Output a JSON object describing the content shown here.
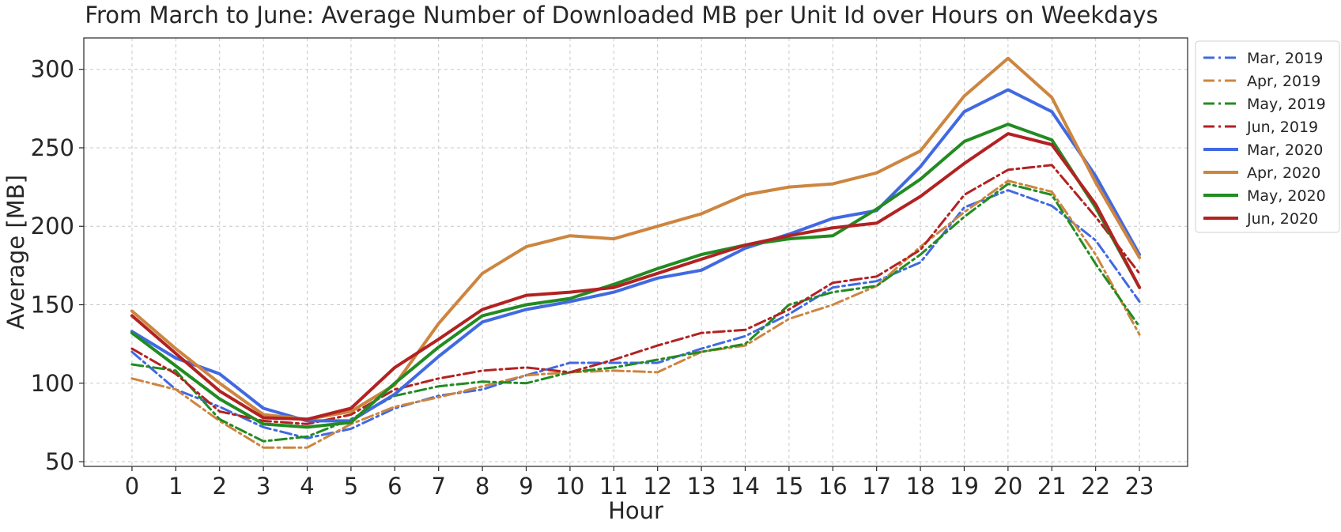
{
  "chart_data": {
    "type": "line",
    "title": "From March to June: Average Number of Downloaded MB per Unit Id over Hours on Weekdays",
    "xlabel": "Hour",
    "ylabel": "Average [MB]",
    "x": [
      0,
      1,
      2,
      3,
      4,
      5,
      6,
      7,
      8,
      9,
      10,
      11,
      12,
      13,
      14,
      15,
      16,
      17,
      18,
      19,
      20,
      21,
      22,
      23
    ],
    "xlim": [
      -1.1,
      24.1
    ],
    "ylim": [
      47,
      320
    ],
    "yticks": [
      50,
      100,
      150,
      200,
      250,
      300
    ],
    "grid": true,
    "legend_position": "upper-right-outside",
    "series": [
      {
        "name": "Mar, 2019",
        "color": "#4169e1",
        "style": "dashdot",
        "values": [
          120,
          96,
          85,
          72,
          65,
          71,
          84,
          92,
          96,
          105,
          113,
          113,
          113,
          122,
          130,
          144,
          161,
          165,
          177,
          212,
          223,
          213,
          191,
          152
        ]
      },
      {
        "name": "Apr, 2019",
        "color": "#cd853f",
        "style": "dashdot",
        "values": [
          103,
          96,
          76,
          59,
          59,
          74,
          85,
          91,
          98,
          105,
          107,
          108,
          107,
          120,
          124,
          141,
          150,
          162,
          187,
          209,
          229,
          222,
          182,
          131
        ]
      },
      {
        "name": "May, 2019",
        "color": "#228b22",
        "style": "dashdot",
        "values": [
          112,
          108,
          77,
          63,
          66,
          77,
          92,
          98,
          101,
          100,
          107,
          110,
          115,
          120,
          125,
          150,
          158,
          162,
          182,
          206,
          227,
          220,
          176,
          136
        ]
      },
      {
        "name": "Jun, 2019",
        "color": "#b22222",
        "style": "dashdot",
        "values": [
          122,
          106,
          82,
          76,
          74,
          80,
          96,
          103,
          108,
          110,
          107,
          115,
          124,
          132,
          134,
          147,
          164,
          168,
          185,
          220,
          236,
          239,
          206,
          170
        ]
      },
      {
        "name": "Mar, 2020",
        "color": "#4169e1",
        "style": "solid",
        "values": [
          133,
          116,
          106,
          84,
          76,
          76,
          93,
          117,
          139,
          147,
          152,
          158,
          167,
          172,
          186,
          195,
          205,
          210,
          238,
          273,
          287,
          273,
          232,
          182
        ]
      },
      {
        "name": "Apr, 2020",
        "color": "#cd853f",
        "style": "solid",
        "values": [
          146,
          122,
          100,
          80,
          77,
          82,
          99,
          138,
          170,
          187,
          194,
          192,
          200,
          208,
          220,
          225,
          227,
          234,
          248,
          283,
          307,
          282,
          228,
          180
        ]
      },
      {
        "name": "May, 2020",
        "color": "#228b22",
        "style": "solid",
        "values": [
          132,
          111,
          90,
          74,
          72,
          75,
          100,
          123,
          143,
          150,
          154,
          163,
          173,
          182,
          188,
          192,
          194,
          211,
          230,
          254,
          265,
          255,
          212,
          161
        ]
      },
      {
        "name": "Jun, 2020",
        "color": "#b22222",
        "style": "solid",
        "values": [
          143,
          119,
          95,
          78,
          77,
          84,
          110,
          128,
          147,
          156,
          158,
          161,
          170,
          179,
          188,
          194,
          199,
          202,
          219,
          240,
          259,
          252,
          214,
          161
        ]
      }
    ]
  }
}
